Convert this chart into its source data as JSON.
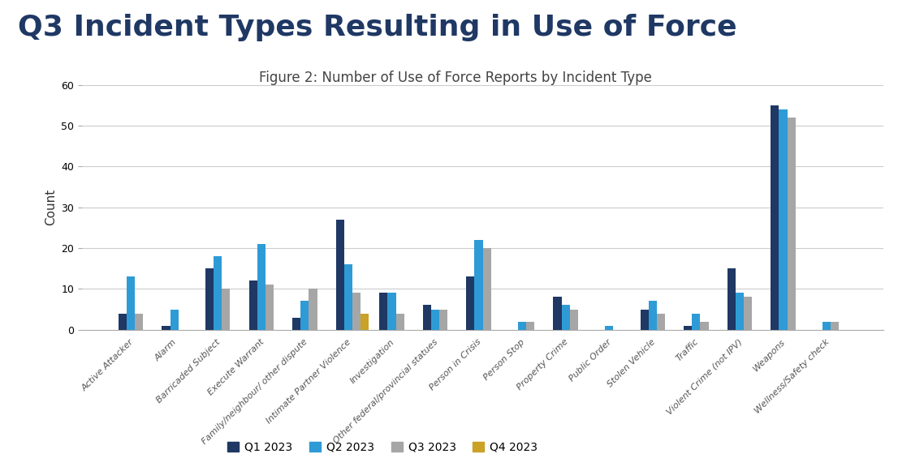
{
  "title": "Q3 Incident Types Resulting in Use of Force",
  "subtitle": "Figure 2: Number of Use of Force Reports by Incident Type",
  "categories": [
    "Active Attacker",
    "Alarm",
    "Barricaded Subject",
    "Execute Warrant",
    "Family/neighbour/ other dispute",
    "Intimate Partner Violence",
    "Investigation",
    "Other federal/provincial statues",
    "Person in Crisis",
    "Person Stop",
    "Property Crime",
    "Public Order",
    "Stolen Vehicle",
    "Traffic",
    "Violent Crime (not IPV)",
    "Weapons",
    "Wellness/Safety check"
  ],
  "series": {
    "Q1 2023": [
      4,
      1,
      15,
      12,
      3,
      27,
      9,
      6,
      13,
      0,
      8,
      0,
      5,
      1,
      15,
      55,
      0
    ],
    "Q2 2023": [
      13,
      5,
      18,
      21,
      7,
      16,
      9,
      5,
      22,
      2,
      6,
      1,
      7,
      4,
      9,
      54,
      2
    ],
    "Q3 2023": [
      4,
      0,
      10,
      11,
      10,
      9,
      4,
      5,
      20,
      2,
      5,
      0,
      4,
      2,
      8,
      52,
      2
    ],
    "Q4 2023": [
      0,
      0,
      0,
      0,
      0,
      4,
      0,
      0,
      0,
      0,
      0,
      0,
      0,
      0,
      0,
      0,
      0
    ]
  },
  "colors": {
    "Q1 2023": "#1f3864",
    "Q2 2023": "#2e9bd6",
    "Q3 2023": "#a6a6a6",
    "Q4 2023": "#c9a227"
  },
  "ylabel": "Count",
  "ylim": [
    0,
    60
  ],
  "yticks": [
    0,
    10,
    20,
    30,
    40,
    50,
    60
  ],
  "bg_color": "#ffffff",
  "bottom_bar_color": "#d0d0d0",
  "title_color": "#1f3864",
  "title_fontsize": 26,
  "subtitle_fontsize": 12
}
